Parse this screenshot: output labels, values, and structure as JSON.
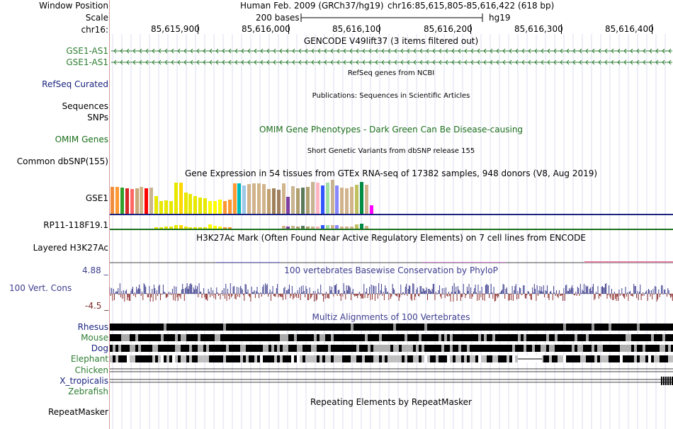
{
  "header": {
    "window_position_label": "Window Position",
    "scale_label": "Scale",
    "chrom_label": "chr16:",
    "assembly": "Human Feb. 2009 (GRCh37/hg19)",
    "position": "chr16:85,615,805-85,616,422 (618 bp)",
    "scale_text": "200 bases",
    "db": "hg19"
  },
  "ruler": {
    "ticks": [
      "85,615,900",
      "85,616,000",
      "85,616,100",
      "85,616,200",
      "85,616,300",
      "85,616,400"
    ]
  },
  "tracks": {
    "gencode": {
      "title": "GENCODE V49lift37 (3 items filtered out)",
      "items": [
        "GSE1-AS1",
        "GSE1-AS1"
      ],
      "color": "#2e7d32"
    },
    "refseq": {
      "title": "RefSeq genes from NCBI",
      "label": "RefSeq Curated",
      "color": "#1a237e"
    },
    "publications": {
      "title": "Publications: Sequences in Scientific Articles",
      "labels": [
        "Sequences",
        "SNPs"
      ]
    },
    "omim": {
      "title": "OMIM Gene Phenotypes - Dark Green Can Be Disease-causing",
      "label": "OMIM Genes",
      "color": "#1b6e1b"
    },
    "dbsnp": {
      "title": "Short Genetic Variants from dbSNP release 155",
      "label": "Common dbSNP(155)"
    },
    "gtex": {
      "title": "Gene Expression in 54 tissues from GTEx RNA-seq of 17382 samples, 948 donors (V8, Aug 2019)",
      "genes": [
        "GSE1",
        "RP11-118F19.1"
      ],
      "bar_colors": [
        "#f08c3c",
        "#ff9933",
        "#33a02c",
        "#d62728",
        "#ff6666",
        "#c8a878",
        "#d2b48c",
        "#ff0000",
        "#c8b490",
        "#e8e800",
        "#e8e800",
        "#e8e800",
        "#e8e800",
        "#e8e800",
        "#ffd700",
        "#e8e800",
        "#e8e800",
        "#e8e800",
        "#e8e800",
        "#e8e800",
        "#ffff00",
        "#ffff00",
        "#ffff00",
        "#ff9933",
        "#ff9933",
        "#ff9933",
        "#00bbbb",
        "#9dc9e8",
        "#d2b48c",
        "#d2b48c",
        "#d2b48c",
        "#d2b48c",
        "#c0a070",
        "#a0825a",
        "#a08060",
        "#d2b48c",
        "#7f3fa0",
        "#c8b490",
        "#b0a070",
        "#5a7a5a",
        "#b0a070",
        "#c8b490",
        "#ffb6c1",
        "#3355ff",
        "#a0e0a0",
        "#c8b490",
        "#8888ff",
        "#d2b48c",
        "#d2b48c",
        "#d2b48c",
        "#c0c060",
        "#008b45",
        "#d2b48c",
        "#ff00ff"
      ],
      "gse1_values": [
        38,
        38,
        37,
        36,
        35,
        36,
        38,
        36,
        37,
        25,
        18,
        19,
        18,
        44,
        44,
        30,
        28,
        25,
        23,
        22,
        18,
        18,
        20,
        18,
        20,
        43,
        43,
        40,
        42,
        43,
        43,
        42,
        35,
        36,
        34,
        43,
        24,
        39,
        36,
        37,
        38,
        45,
        44,
        40,
        44,
        48,
        40,
        37,
        36,
        38,
        41,
        45,
        41,
        12
      ],
      "rp11_values": [
        0,
        0,
        0,
        0,
        0,
        0,
        0,
        0,
        0,
        2,
        2,
        3,
        3,
        5,
        5,
        3,
        2,
        2,
        2,
        2,
        6,
        4,
        3,
        2,
        2,
        0,
        0,
        0,
        0,
        0,
        0,
        0,
        0,
        0,
        0,
        4,
        3,
        4,
        3,
        4,
        3,
        3,
        3,
        5,
        5,
        5,
        5,
        3,
        3,
        3,
        6,
        7,
        4,
        0
      ]
    },
    "h3k27ac": {
      "title": "H3K27Ac Mark (Often Found Near Active Regulatory Elements) on 7 cell lines from ENCODE",
      "label": "Layered H3K27Ac"
    },
    "conservation": {
      "title": "100 vertebrates Basewise Conservation by PhyloP",
      "label": "100 Vert. Cons",
      "ymax": "4.88 _",
      "ymin": "-4.5 _",
      "color": "#3e3e8e"
    },
    "multiz": {
      "title": "Multiz Alignments of 100 Vertebrates",
      "species": [
        "Rhesus",
        "Mouse",
        "Dog",
        "Elephant",
        "Chicken",
        "X_tropicalis",
        "Zebrafish"
      ],
      "species_colors": [
        "#1a237e",
        "#2e7d32",
        "#1a237e",
        "#2e7d32",
        "#2e7d32",
        "#1a237e",
        "#2e7d32"
      ]
    },
    "repeatmasker": {
      "title": "Repeating Elements by RepeatMasker",
      "label": "RepeatMasker"
    }
  }
}
